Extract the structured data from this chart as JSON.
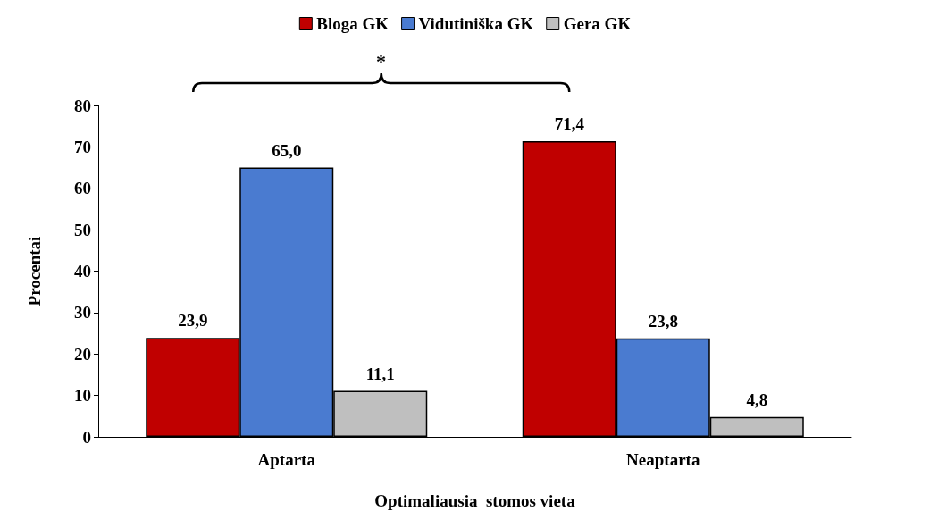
{
  "chart_data": {
    "type": "bar",
    "xlabel": "Optimaliausia  stomos vieta",
    "ylabel": "Procentai",
    "categories": [
      "Aptarta",
      "Neaptarta"
    ],
    "series": [
      {
        "name": "Bloga GK",
        "color": "#c00000",
        "values": [
          23.9,
          71.4
        ],
        "value_labels": [
          "23,9",
          "71,4"
        ]
      },
      {
        "name": "Vidutiniška GK",
        "color": "#4a7bd0",
        "values": [
          65.0,
          23.8
        ],
        "value_labels": [
          "65,0",
          "23,8"
        ]
      },
      {
        "name": "Gera GK",
        "color": "#bfbfbf",
        "values": [
          11.1,
          4.8
        ],
        "value_labels": [
          "11,1",
          "4,8"
        ]
      }
    ],
    "ylim": [
      0,
      80
    ],
    "yticks": [
      0,
      10,
      20,
      30,
      40,
      50,
      60,
      70,
      80
    ],
    "grid": false,
    "legend": "top",
    "annotations": [
      "*"
    ]
  }
}
